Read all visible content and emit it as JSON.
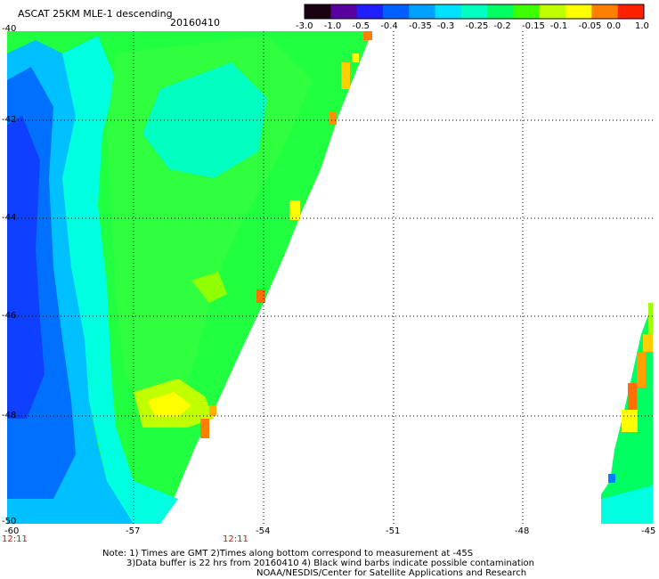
{
  "title": "ASCAT 25KM MLE-1 descending",
  "date": "20160410",
  "colorbar": {
    "labels": [
      "-3.0",
      "-1.0",
      "-0.5",
      "-0.4",
      "-0.35",
      "-0.3",
      "-0.25",
      "-0.2",
      "-0.15",
      "-0.1",
      "-0.05",
      "0.0",
      "1.0"
    ],
    "colors": [
      "#1a0010",
      "#5a00a0",
      "#2020ff",
      "#0060ff",
      "#00a0ff",
      "#00e0ff",
      "#00ffc0",
      "#00ff60",
      "#40ff00",
      "#c0ff00",
      "#ffff00",
      "#ff8000",
      "#ff2000"
    ]
  },
  "map": {
    "lon_labels": [
      "-60",
      "-57",
      "-54",
      "-51",
      "-48",
      "-45"
    ],
    "lat_labels": [
      "-40",
      "-42",
      "-44",
      "-46",
      "-48",
      "-50"
    ],
    "time_labels": [
      "12:11",
      "12:11"
    ]
  },
  "notes": [
    "Note: 1) Times are GMT 2)Times along bottom correspond to measurement at -45S",
    "3)Data buffer is 22 hrs from 20160410 4) Black wind barbs indicate possible contamination",
    "NOAA/NESDIS/Center for Satellite Applications and Research"
  ],
  "legend_colors": {
    "deep_blue": "#1040ff",
    "blue": "#0090ff",
    "cyan": "#00ffff",
    "aqua": "#00ffb0",
    "green": "#00ff40",
    "lime": "#60ff00",
    "yellowgreen": "#c0ff00",
    "yellow": "#ffff00",
    "orange": "#ff9000",
    "red_orange": "#ff4000"
  }
}
